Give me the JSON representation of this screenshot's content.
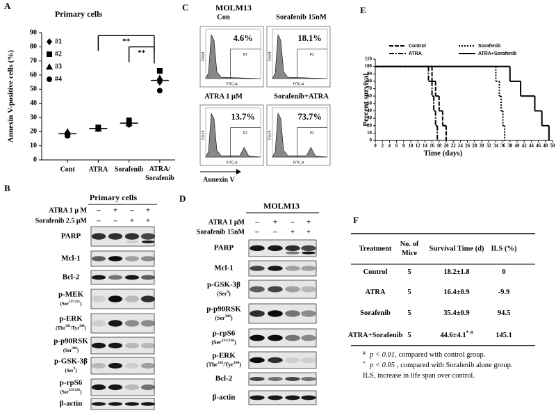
{
  "chart_data": [
    {
      "type": "scatter",
      "panel": "A",
      "title": "Primary cells",
      "ylabel": "Annexin V-positive cells (%)",
      "categories": [
        "Cont",
        "ATRA",
        "Sorafenib",
        "ATRA/Sorafenib"
      ],
      "series": [
        {
          "name": "#1",
          "marker": "diamond",
          "color": "#000000",
          "values": [
            19,
            22,
            25,
            55
          ]
        },
        {
          "name": "#2",
          "marker": "square",
          "color": "#000000",
          "values": [
            18,
            23,
            28,
            63
          ]
        },
        {
          "name": "#3",
          "marker": "triangle",
          "color": "#000000",
          "values": [
            20,
            22,
            26,
            58
          ]
        },
        {
          "name": "#4",
          "marker": "circle",
          "color": "#000000",
          "values": [
            17,
            22,
            25,
            49
          ]
        }
      ],
      "means": [
        18.5,
        22.25,
        26,
        56.25
      ],
      "ylim": [
        0,
        90
      ],
      "yticks": [
        0,
        10,
        20,
        30,
        40,
        50,
        60,
        70,
        80,
        90
      ],
      "annotations": [
        {
          "text": "**",
          "from": 1,
          "to": 3,
          "y": 88
        },
        {
          "text": "**",
          "from": 2,
          "to": 3,
          "y": 80
        }
      ]
    },
    {
      "type": "line",
      "panel": "E",
      "xlabel": "Time (days)",
      "ylabel": "Percent survival",
      "series": [
        {
          "name": "Control",
          "line_style": "dashed",
          "color": "#000000",
          "x": [
            0,
            16,
            17,
            18,
            19,
            20
          ],
          "values": [
            100,
            80,
            60,
            40,
            20,
            0
          ]
        },
        {
          "name": "Sorafenib",
          "line_style": "dotted",
          "color": "#000000",
          "x": [
            0,
            34,
            35,
            35.5,
            36,
            36.5
          ],
          "values": [
            100,
            80,
            60,
            40,
            20,
            0
          ]
        },
        {
          "name": "ATRA",
          "line_style": "dash-dot",
          "color": "#000000",
          "x": [
            0,
            15,
            16,
            16.5,
            17,
            17.5
          ],
          "values": [
            100,
            80,
            60,
            40,
            20,
            0
          ]
        },
        {
          "name": "ATRA+Sorafenib",
          "line_style": "solid",
          "color": "#000000",
          "x": [
            0,
            38,
            41,
            45,
            47,
            49
          ],
          "values": [
            100,
            80,
            60,
            40,
            20,
            0
          ]
        }
      ],
      "xlim": [
        0,
        50
      ],
      "xticks": [
        0,
        2,
        4,
        6,
        8,
        10,
        12,
        14,
        16,
        18,
        20,
        22,
        24,
        26,
        28,
        30,
        32,
        34,
        36,
        38,
        40,
        42,
        44,
        46,
        48,
        50
      ],
      "ylim": [
        0,
        110
      ],
      "yticks": [
        0,
        10,
        20,
        30,
        40,
        50,
        60,
        70,
        80,
        90,
        100,
        110
      ]
    }
  ],
  "letters": {
    "A": "A",
    "B": "B",
    "C": "C",
    "D": "D",
    "E": "E",
    "F": "F"
  },
  "flow": {
    "title": "MOLM13",
    "x_axis_label": "Annexin V",
    "count_label": "Count",
    "fitc_label": "FITC-A",
    "gate_label": "P2",
    "panels": [
      {
        "title": "Con",
        "percent": "4.6%"
      },
      {
        "title": "Sorafenib 15nM",
        "percent": "18.1%"
      },
      {
        "title": "ATRA 1 μM",
        "percent": "13.7%"
      },
      {
        "title": "Sorafenib+ATRA",
        "percent": "73.7%"
      }
    ]
  },
  "blot_B": {
    "title": "Primary cells",
    "treatments": [
      {
        "label": "ATRA 1 μ M",
        "signs": [
          "–",
          "+",
          "–",
          "+"
        ]
      },
      {
        "label": "Sorafenib 2.5 μM",
        "signs": [
          "–",
          "–",
          "+",
          "+"
        ]
      }
    ],
    "rows": [
      {
        "label": "PARP"
      },
      {
        "label": "Mcl-1"
      },
      {
        "label": "Bcl-2"
      },
      {
        "label": "p-MEK",
        "site": [
          "(Ser",
          "217/221",
          ")"
        ]
      },
      {
        "label": "p-ERK",
        "site": [
          "(Thr",
          "202",
          "/Tyr",
          "204",
          ")"
        ]
      },
      {
        "label": "p-p90RSK",
        "site": [
          "(Ser",
          "380",
          ")"
        ]
      },
      {
        "label": "p-GSK-3β",
        "site": [
          "(Ser",
          "9",
          ")"
        ]
      },
      {
        "label": "p-rpS6",
        "site": [
          "(Ser",
          "235/236",
          ")"
        ]
      },
      {
        "label": "β-actin"
      }
    ]
  },
  "blot_D": {
    "title": "MOLM13",
    "treatments": [
      {
        "label": "ATRA   1 μM",
        "signs": [
          "–",
          "+",
          "–",
          "+"
        ]
      },
      {
        "label": "Sorafenib  15nM",
        "signs": [
          "–",
          "–",
          "+",
          "+"
        ]
      }
    ],
    "rows": [
      {
        "label": "PARP"
      },
      {
        "label": "Mcl-1"
      },
      {
        "label": "p-GSK-3β",
        "site": [
          "(Ser",
          "9",
          ")"
        ]
      },
      {
        "label": "p-p90RSK",
        "site": [
          "(Ser",
          "380",
          ")"
        ]
      },
      {
        "label": "p-rpS6",
        "site": [
          "(Ser",
          "235/236",
          ")"
        ]
      },
      {
        "label": "p-ERK",
        "site": [
          "(Thr",
          "202",
          "/Tyr",
          "204",
          ")"
        ]
      },
      {
        "label": "Bcl-2"
      },
      {
        "label": "β-actin"
      }
    ]
  },
  "table": {
    "headers": [
      [
        "Treatment"
      ],
      [
        "No. of",
        "Mice"
      ],
      [
        "Survival  Time (d)"
      ],
      [
        "ILS (%)"
      ]
    ],
    "rows": [
      [
        {
          "text": "Control"
        },
        {
          "text": "5"
        },
        {
          "text": "18.2±1.8"
        },
        {
          "text": "0"
        }
      ],
      [
        {
          "text": "ATRA"
        },
        {
          "text": "5"
        },
        {
          "text": "16.4±0.9"
        },
        {
          "text": "-9.9"
        }
      ],
      [
        {
          "text": "Sorafenib"
        },
        {
          "text": "5"
        },
        {
          "text": "35.4±0.9"
        },
        {
          "text": "94.5"
        }
      ],
      [
        {
          "text": "ATRA+Sorafenib"
        },
        {
          "text": "5"
        },
        {
          "text": "44.6±4.1",
          "sup": "* #"
        },
        {
          "text": "145.1"
        }
      ]
    ],
    "footnotes": [
      {
        "symbol": "#",
        "italic": "p < 0.01,",
        "text": "compared with control group."
      },
      {
        "symbol": "*",
        "italic": "p < 0.05",
        "text": ", compared with Sorafenib alone group."
      },
      {
        "text": "ILS,  increase in life span over control."
      }
    ]
  }
}
